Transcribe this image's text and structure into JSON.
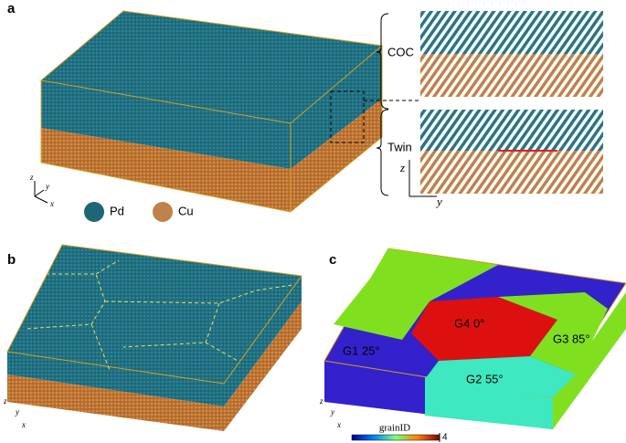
{
  "panels": {
    "a": {
      "label": "a",
      "inset_labels": [
        "COC",
        "Twin"
      ],
      "inset_axes": [
        "z",
        "y"
      ],
      "legend": [
        "Pd",
        "Cu"
      ],
      "axes": [
        "z",
        "y",
        "x"
      ]
    },
    "b": {
      "label": "b",
      "axes": [
        "z",
        "y",
        "x"
      ]
    },
    "c": {
      "label": "c",
      "grains": [
        "G4 0°",
        "G3 85°",
        "G1 25°",
        "G2 55°"
      ],
      "axes": [
        "z",
        "y",
        "x"
      ],
      "colorbar": {
        "label": "grainID",
        "lim": [
          0,
          4
        ],
        "ticks": [
          4
        ]
      }
    }
  }
}
